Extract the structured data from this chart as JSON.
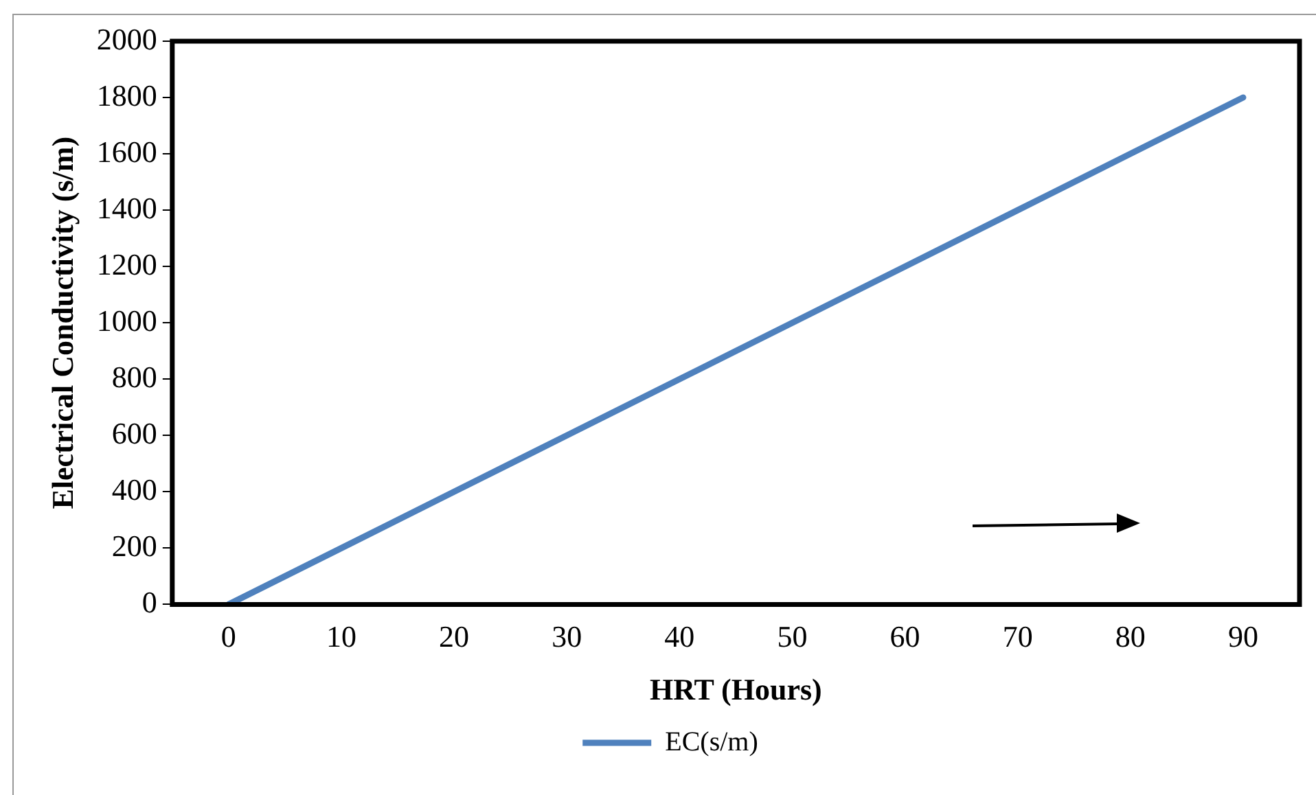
{
  "chart_data": {
    "type": "line",
    "xlabel": "HRT (Hours)",
    "ylabel": "Electrical Conductivity (s/m)",
    "x": [
      0,
      10,
      20,
      30,
      40,
      50,
      60,
      70,
      80,
      90
    ],
    "series": [
      {
        "name": "EC(s/m)",
        "color": "#4f81bd",
        "values": [
          0,
          200,
          400,
          600,
          800,
          1000,
          1200,
          1400,
          1600,
          1800
        ]
      }
    ],
    "xlim": [
      -5,
      95
    ],
    "xticks": [
      0,
      10,
      20,
      30,
      40,
      50,
      60,
      70,
      80,
      90
    ],
    "ylim": [
      0,
      2000
    ],
    "yticks": [
      0,
      200,
      400,
      600,
      800,
      1000,
      1200,
      1400,
      1600,
      1800,
      2000
    ],
    "grid": false,
    "legend": "bottom",
    "marker": "none"
  }
}
